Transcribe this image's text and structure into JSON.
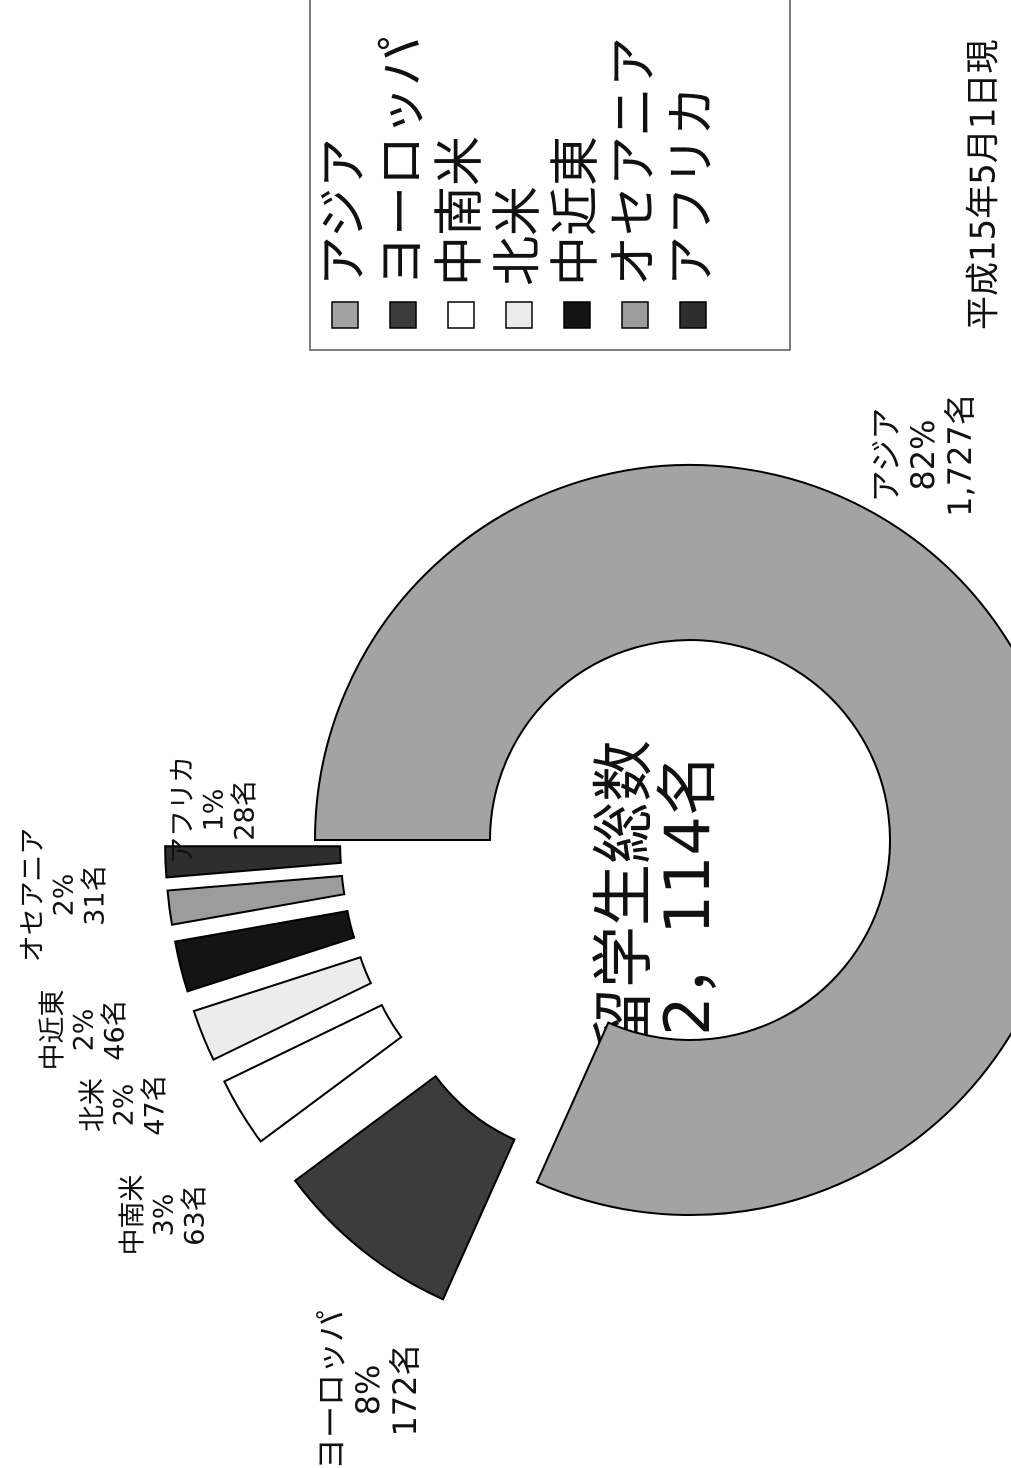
{
  "chart_data": {
    "type": "donut",
    "title": "平成15年5月1日現",
    "center_title": "留学生総数",
    "center_value": "2，114名",
    "categories": [
      "アジア",
      "ヨーロッパ",
      "中南米",
      "北米",
      "中近東",
      "オセアニア",
      "アフリカ"
    ],
    "values": [
      1727,
      172,
      63,
      47,
      46,
      31,
      28
    ],
    "value_labels": [
      "1,727名",
      "172名",
      "63名",
      "47名",
      "46名",
      "31名",
      "28名"
    ],
    "percent_labels": [
      "82%",
      "8%",
      "3%",
      "2%",
      "2%",
      "2%",
      "1%"
    ],
    "colors": [
      "#a3a3a3",
      "#3c3c3c",
      "#ffffff",
      "#ececec",
      "#141414",
      "#9c9c9c",
      "#2e2e2e"
    ],
    "legend": "right"
  }
}
